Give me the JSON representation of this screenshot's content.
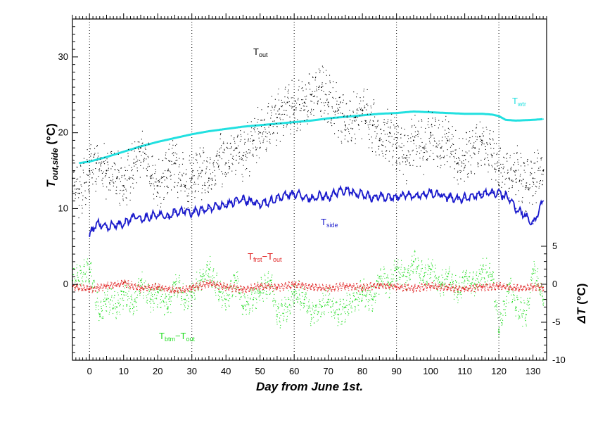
{
  "chart_data": {
    "type": "scatter",
    "title": "",
    "xlabel": "Day  from  June  1st.",
    "ylabel_left": "T",
    "ylabel_left_sub": "out,side",
    "ylabel_left_unit": "(°C)",
    "ylabel_right": "ΔT",
    "ylabel_right_unit": "(°C)",
    "xlim": [
      -5,
      134
    ],
    "ylim_left": [
      -10,
      35
    ],
    "ylim_right": [
      -10,
      5
    ],
    "x_ticks": [
      0,
      10,
      20,
      30,
      40,
      50,
      60,
      70,
      80,
      90,
      100,
      110,
      120,
      130
    ],
    "x_tick_labels": [
      "0",
      "10",
      "20",
      "30",
      "40",
      "50",
      "60",
      "70",
      "80",
      "90",
      "100",
      "110",
      "120",
      "130"
    ],
    "y_left_ticks": [
      10,
      20,
      30
    ],
    "y_left_tick_labels": [
      "10",
      "20",
      "30"
    ],
    "y_right_ticks": [
      5,
      0,
      -5,
      -10
    ],
    "y_right_tick_labels": [
      "5",
      "0",
      "-5",
      "-10"
    ],
    "y_zero_label": "0",
    "vertical_gridlines_at": [
      0,
      30,
      60,
      90,
      120
    ],
    "grid": "dotted vertical",
    "series": [
      {
        "name": "Tout",
        "label_main": "T",
        "label_sub": "out",
        "color": "#000000",
        "axis": "left",
        "style": "dots",
        "x": [
          -5,
          -3,
          0,
          2,
          5,
          8,
          10,
          13,
          15,
          18,
          20,
          23,
          25,
          28,
          30,
          33,
          35,
          38,
          40,
          43,
          45,
          48,
          50,
          53,
          55,
          58,
          60,
          63,
          65,
          68,
          70,
          73,
          75,
          78,
          80,
          83,
          85,
          88,
          90,
          93,
          95,
          98,
          100,
          103,
          105,
          108,
          110,
          113,
          115,
          118,
          120,
          123,
          125,
          128,
          130,
          133
        ],
        "y": [
          14,
          12,
          15,
          16,
          15,
          14,
          13,
          16,
          18,
          14,
          13,
          15,
          16,
          13,
          14,
          15,
          14,
          17,
          16,
          18,
          17,
          19,
          20,
          21,
          22,
          24,
          23,
          24,
          25,
          26,
          24,
          23,
          21,
          22,
          23,
          21,
          19,
          20,
          18,
          17,
          19,
          18,
          20,
          18,
          19,
          16,
          17,
          18,
          19,
          17,
          15,
          14,
          15,
          13,
          14,
          15
        ]
      },
      {
        "name": "Twtr",
        "label_main": "T",
        "label_sub": "wtr",
        "color": "#22e0e0",
        "axis": "left",
        "style": "line",
        "x": [
          -3,
          0,
          5,
          10,
          15,
          20,
          25,
          30,
          35,
          40,
          45,
          50,
          55,
          60,
          65,
          70,
          75,
          80,
          85,
          90,
          95,
          100,
          105,
          110,
          115,
          118,
          120,
          122,
          125,
          130,
          133
        ],
        "y": [
          16,
          16.2,
          16.8,
          17.5,
          18.2,
          18.8,
          19.3,
          19.8,
          20.2,
          20.5,
          20.8,
          21.0,
          21.2,
          21.4,
          21.6,
          21.9,
          22.1,
          22.3,
          22.5,
          22.6,
          22.8,
          22.7,
          22.6,
          22.5,
          22.5,
          22.4,
          22.2,
          21.7,
          21.6,
          21.7,
          21.8
        ]
      },
      {
        "name": "Tside",
        "label_main": "T",
        "label_sub": "side",
        "color": "#1a1acc",
        "axis": "left",
        "style": "line",
        "x": [
          0,
          2,
          5,
          8,
          10,
          13,
          15,
          18,
          20,
          23,
          25,
          28,
          30,
          33,
          35,
          38,
          40,
          43,
          45,
          48,
          50,
          53,
          55,
          58,
          60,
          63,
          65,
          68,
          70,
          73,
          75,
          78,
          80,
          83,
          85,
          88,
          90,
          93,
          95,
          98,
          100,
          103,
          105,
          108,
          110,
          113,
          115,
          118,
          120,
          123,
          125,
          128,
          130,
          133
        ],
        "y": [
          6.5,
          8,
          7.5,
          8,
          7.8,
          9,
          8.5,
          9,
          9.2,
          8.8,
          9.5,
          9.7,
          9.4,
          9.8,
          10,
          10.3,
          10.5,
          11,
          11.2,
          10.8,
          10.5,
          11,
          11.4,
          11.8,
          12,
          11.5,
          11.3,
          11.7,
          11.5,
          12.3,
          12.5,
          12,
          11.8,
          11.5,
          11.7,
          11.4,
          11.5,
          11.8,
          11.6,
          11.9,
          12.1,
          11.8,
          11.5,
          11.2,
          11.4,
          11.6,
          11.9,
          12.1,
          12,
          11.4,
          10,
          9,
          8,
          11
        ]
      },
      {
        "name": "Tfrst-Tout",
        "label_main": "T",
        "label_sub": "frst",
        "label_minus": "−T",
        "label_sub2": "out",
        "color": "#e02020",
        "axis": "right",
        "style": "dots",
        "x": [
          -5,
          0,
          5,
          10,
          15,
          20,
          25,
          30,
          35,
          40,
          45,
          50,
          55,
          60,
          65,
          70,
          75,
          80,
          85,
          90,
          95,
          100,
          105,
          110,
          115,
          120,
          125,
          130,
          133
        ],
        "y": [
          -0.3,
          -0.6,
          -0.2,
          0.2,
          -0.5,
          -0.3,
          -0.8,
          -0.4,
          0.1,
          -0.3,
          -0.6,
          -0.2,
          -0.4,
          0.0,
          -0.3,
          -0.5,
          -0.2,
          -0.4,
          -0.1,
          -0.3,
          -0.5,
          -0.2,
          -0.4,
          -0.6,
          -0.3,
          -0.2,
          -0.5,
          -0.3,
          -0.4
        ]
      },
      {
        "name": "Tbtm-Tout",
        "label_main": "T",
        "label_sub": "btm",
        "label_minus": "−T",
        "label_sub2": "out",
        "color": "#22dd22",
        "axis": "right",
        "style": "dots",
        "x": [
          -5,
          0,
          3,
          5,
          8,
          10,
          13,
          15,
          18,
          20,
          23,
          25,
          28,
          30,
          33,
          35,
          38,
          40,
          43,
          45,
          48,
          50,
          53,
          55,
          58,
          60,
          63,
          65,
          68,
          70,
          73,
          75,
          78,
          80,
          83,
          85,
          88,
          90,
          93,
          95,
          98,
          100,
          103,
          105,
          108,
          110,
          113,
          115,
          118,
          120,
          123,
          125,
          128,
          130,
          133
        ],
        "y": [
          0.5,
          2,
          -4,
          -2,
          -3,
          -1,
          -3,
          0.5,
          -2,
          -1,
          -3,
          0.2,
          -2,
          -1,
          1,
          2,
          -1,
          -2,
          0.5,
          -3,
          -2,
          -1,
          0.5,
          -4,
          -3,
          -1,
          -2,
          -4,
          -3,
          -2,
          -4,
          -3,
          -2,
          -1,
          -2,
          1,
          0,
          2,
          1,
          3,
          1,
          2,
          0,
          1,
          -1,
          1,
          0,
          2,
          1,
          -6,
          0,
          -3,
          -4,
          2,
          -2
        ]
      }
    ],
    "annotations": [
      {
        "series": "Tout"
      },
      {
        "series": "Twtr"
      },
      {
        "series": "Tside"
      },
      {
        "series": "Tfrst-Tout"
      },
      {
        "series": "Tbtm-Tout"
      }
    ]
  }
}
